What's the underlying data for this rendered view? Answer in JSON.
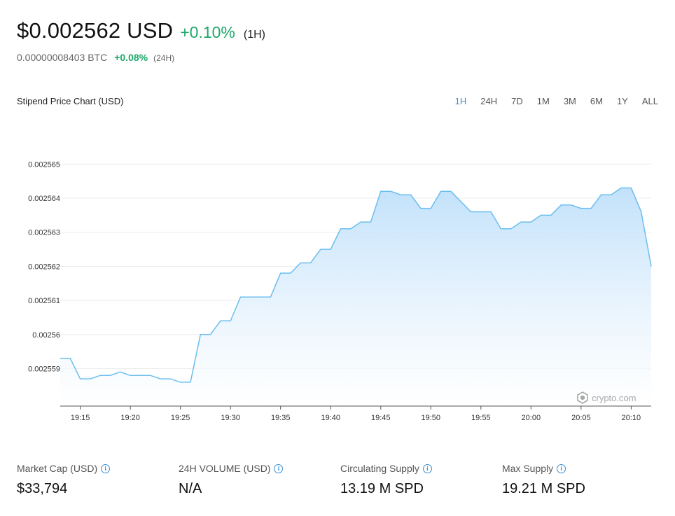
{
  "header": {
    "price": "$0.002562 USD",
    "change": "+0.10%",
    "period": "(1H)",
    "btc_price": "0.00000008403 BTC",
    "btc_change": "+0.08%",
    "btc_period": "(24H)"
  },
  "chart_title": "Stipend Price Chart (USD)",
  "ranges": [
    "1H",
    "24H",
    "7D",
    "1M",
    "3M",
    "6M",
    "1Y",
    "ALL"
  ],
  "active_range": "1H",
  "watermark": "crypto.com",
  "colors": {
    "accent": "#3a8fd6",
    "positive": "#1da86a",
    "line": "#6bbef0",
    "fill": "#cfe8fb"
  },
  "chart_data": {
    "type": "area",
    "title": "Stipend Price Chart (USD)",
    "xlabel": "",
    "ylabel": "",
    "x_ticks": [
      "19:15",
      "19:20",
      "19:25",
      "19:30",
      "19:35",
      "19:40",
      "19:45",
      "19:50",
      "19:55",
      "20:00",
      "20:05",
      "20:10"
    ],
    "y_ticks": [
      "0.002565",
      "0.002564",
      "0.002563",
      "0.002562",
      "0.002561",
      "0.00256",
      "0.002559"
    ],
    "ylim": [
      0.0025579,
      0.0025655
    ],
    "xlim": [
      "19:13",
      "20:12"
    ],
    "grid": true,
    "series": [
      {
        "x": [
          "19:13",
          "19:14",
          "19:15",
          "19:16",
          "19:17",
          "19:18",
          "19:19",
          "19:20",
          "19:21",
          "19:22",
          "19:23",
          "19:24",
          "19:25",
          "19:26",
          "19:27",
          "19:28",
          "19:29",
          "19:30",
          "19:31",
          "19:32",
          "19:33",
          "19:34",
          "19:35",
          "19:36",
          "19:37",
          "19:38",
          "19:39",
          "19:40",
          "19:41",
          "19:42",
          "19:43",
          "19:44",
          "19:45",
          "19:46",
          "19:47",
          "19:48",
          "19:49",
          "19:50",
          "19:51",
          "19:52",
          "19:53",
          "19:54",
          "19:55",
          "19:56",
          "19:57",
          "19:58",
          "19:59",
          "20:00",
          "20:01",
          "20:02",
          "20:03",
          "20:04",
          "20:05",
          "20:06",
          "20:07",
          "20:08",
          "20:09",
          "20:10",
          "20:11",
          "20:12"
        ],
        "y": [
          0.0025593,
          0.0025593,
          0.0025587,
          0.0025587,
          0.0025588,
          0.0025588,
          0.0025589,
          0.0025588,
          0.0025588,
          0.0025588,
          0.0025587,
          0.0025587,
          0.0025586,
          0.0025586,
          0.00256,
          0.00256,
          0.0025604,
          0.0025604,
          0.0025611,
          0.0025611,
          0.0025611,
          0.0025611,
          0.0025618,
          0.0025618,
          0.0025621,
          0.0025621,
          0.0025625,
          0.0025625,
          0.0025631,
          0.0025631,
          0.0025633,
          0.0025633,
          0.0025642,
          0.0025642,
          0.0025641,
          0.0025641,
          0.0025637,
          0.0025637,
          0.0025642,
          0.0025642,
          0.0025639,
          0.0025636,
          0.0025636,
          0.0025636,
          0.0025631,
          0.0025631,
          0.0025633,
          0.0025633,
          0.0025635,
          0.0025635,
          0.0025638,
          0.0025638,
          0.0025637,
          0.0025637,
          0.0025641,
          0.0025641,
          0.0025643,
          0.0025643,
          0.0025636,
          0.002562
        ]
      }
    ]
  },
  "stats": [
    {
      "label": "Market Cap (USD)",
      "value": "$33,794"
    },
    {
      "label": "24H VOLUME (USD)",
      "value": "N/A"
    },
    {
      "label": "Circulating Supply",
      "value": "13.19 M SPD"
    },
    {
      "label": "Max Supply",
      "value": "19.21 M SPD"
    }
  ]
}
